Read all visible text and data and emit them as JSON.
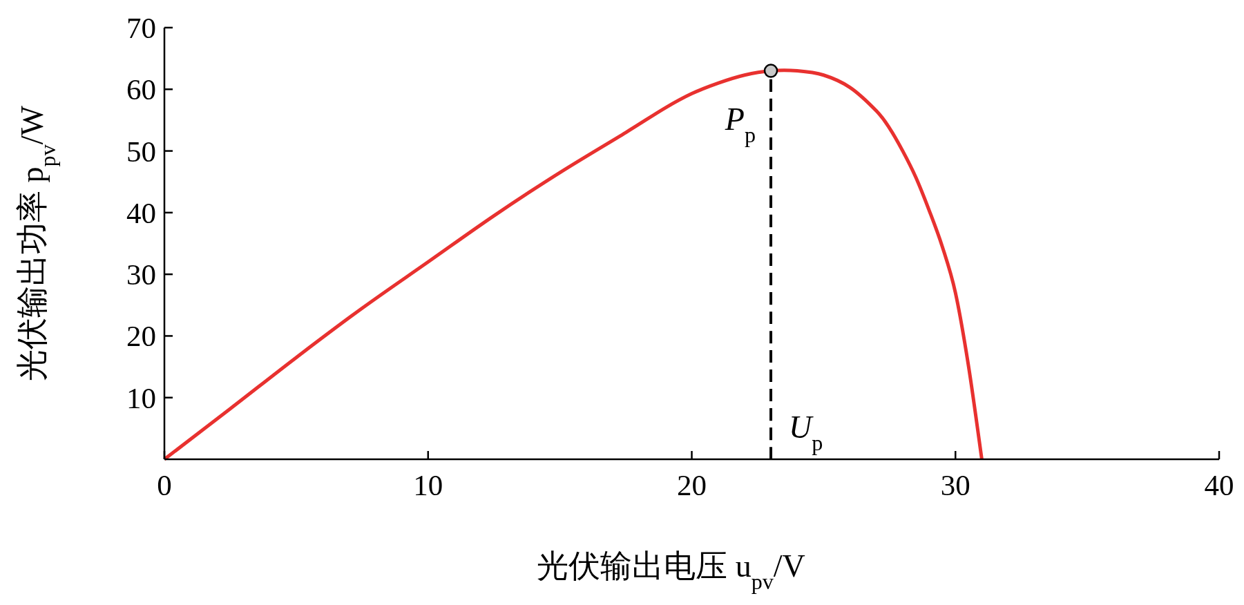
{
  "chart_data": {
    "type": "line",
    "xlabel": "光伏输出电压 u$_{pv}$/V",
    "ylabel": "光伏输出功率 p$_{pv}$/W",
    "xlim": [
      0,
      40
    ],
    "xticks": [
      0,
      10,
      20,
      30,
      40
    ],
    "ylim": [
      0,
      70
    ],
    "yticks": [
      10,
      20,
      30,
      40,
      50,
      60,
      70
    ],
    "grid": false,
    "series": [
      {
        "type": "line",
        "color": "#e8312f",
        "line_style": "solid",
        "x": [
          0,
          2.5,
          5,
          7.5,
          10,
          12.5,
          15,
          17.5,
          19,
          20,
          21,
          22,
          23,
          24,
          25,
          26,
          27,
          27.5,
          28,
          28.5,
          29,
          29.5,
          30,
          30.5,
          31
        ],
        "values": [
          0,
          8.2,
          16.5,
          24.5,
          32,
          39.5,
          46.5,
          53,
          57,
          59.3,
          61,
          62.3,
          63,
          63,
          62.3,
          60.3,
          56.5,
          53.7,
          50,
          45.7,
          40.4,
          34.5,
          27,
          15,
          0
        ]
      },
      {
        "type": "line",
        "color": "#000000",
        "line_style": "dashed",
        "x": [
          23,
          23
        ],
        "values": [
          0,
          63
        ]
      },
      {
        "type": "scatter",
        "color": "#c8c8c8",
        "marker": "circle",
        "x": [
          23
        ],
        "values": [
          63
        ]
      }
    ],
    "annotations": [
      {
        "text": "P$_{p}$",
        "x": 23,
        "y": 55
      },
      {
        "text": "U$_{p}$",
        "x": 23,
        "y": 5
      }
    ]
  }
}
